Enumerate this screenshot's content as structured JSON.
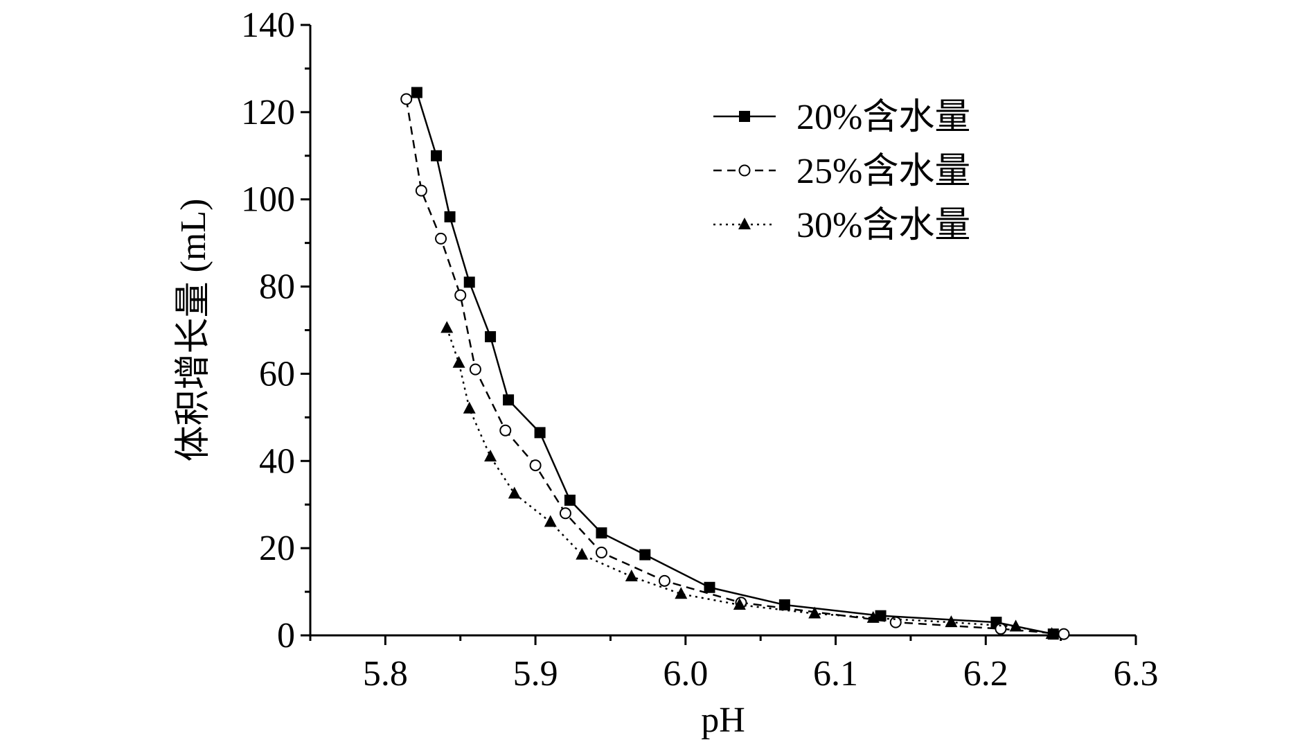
{
  "chart_data": {
    "type": "line",
    "title": "",
    "xlabel": "pH",
    "ylabel": "体积增长量 (mL)",
    "xlim": [
      5.75,
      6.3
    ],
    "ylim": [
      0,
      140
    ],
    "xticks": [
      5.8,
      5.9,
      6.0,
      6.1,
      6.2,
      6.3
    ],
    "xtick_labels": [
      "5.8",
      "5.9",
      "6.0",
      "6.1",
      "6.2",
      "6.3"
    ],
    "yticks": [
      0,
      20,
      40,
      60,
      80,
      100,
      120,
      140
    ],
    "ytick_labels": [
      "0",
      "20",
      "40",
      "60",
      "80",
      "100",
      "120",
      "140"
    ],
    "grid": false,
    "legend_position": "top-right",
    "series": [
      {
        "name": "20%含水量",
        "marker": "filled-square",
        "line_style": "solid",
        "color": "#000000",
        "x": [
          5.821,
          5.834,
          5.843,
          5.856,
          5.87,
          5.882,
          5.903,
          5.923,
          5.944,
          5.973,
          6.016,
          6.066,
          6.13,
          6.207,
          6.245
        ],
        "y": [
          124.5,
          110,
          96,
          81,
          68.5,
          54,
          46.5,
          31,
          23.5,
          18.5,
          11,
          7,
          4.5,
          3,
          0.3
        ]
      },
      {
        "name": "25%含水量",
        "marker": "open-circle",
        "line_style": "dashed",
        "color": "#000000",
        "x": [
          5.814,
          5.824,
          5.837,
          5.85,
          5.86,
          5.88,
          5.9,
          5.92,
          5.944,
          5.986,
          6.037,
          6.14,
          6.21,
          6.252
        ],
        "y": [
          123,
          102,
          91,
          78,
          61,
          47,
          39,
          28,
          19,
          12.5,
          7.5,
          3,
          1.5,
          0.3
        ]
      },
      {
        "name": "30%含水量",
        "marker": "filled-triangle",
        "line_style": "dotted",
        "color": "#000000",
        "x": [
          5.841,
          5.849,
          5.856,
          5.87,
          5.886,
          5.91,
          5.931,
          5.964,
          5.997,
          6.036,
          6.086,
          6.125,
          6.177,
          6.22,
          6.244
        ],
        "y": [
          70.5,
          62.5,
          52,
          41,
          32.5,
          26,
          18.5,
          13.5,
          9.5,
          7,
          5,
          4,
          3,
          2,
          0.3
        ]
      }
    ]
  }
}
